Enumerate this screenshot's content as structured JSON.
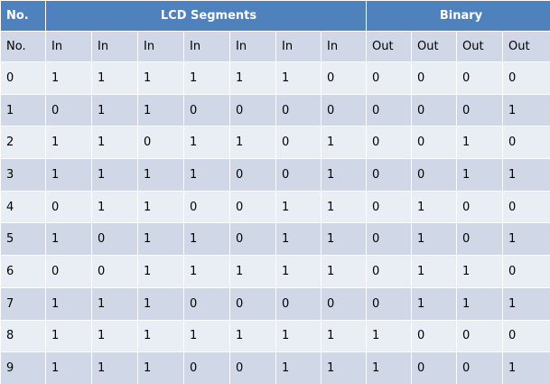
{
  "table": {
    "header": [
      "No.",
      "LCD Segments",
      "Binary"
    ],
    "subheader": [
      "No.",
      "In",
      "In",
      "In",
      "In",
      "In",
      "In",
      "In",
      "Out",
      "Out",
      "Out",
      "Out"
    ],
    "rows": [
      [
        0,
        1,
        1,
        1,
        1,
        1,
        1,
        0,
        0,
        0,
        0,
        0
      ],
      [
        1,
        0,
        1,
        1,
        0,
        0,
        0,
        0,
        0,
        0,
        0,
        1
      ],
      [
        2,
        1,
        1,
        0,
        1,
        1,
        0,
        1,
        0,
        0,
        1,
        0
      ],
      [
        3,
        1,
        1,
        1,
        1,
        0,
        0,
        1,
        0,
        0,
        1,
        1
      ],
      [
        4,
        0,
        1,
        1,
        0,
        0,
        1,
        1,
        0,
        1,
        0,
        0
      ],
      [
        5,
        1,
        0,
        1,
        1,
        0,
        1,
        1,
        0,
        1,
        0,
        1
      ],
      [
        6,
        0,
        0,
        1,
        1,
        1,
        1,
        1,
        0,
        1,
        1,
        0
      ],
      [
        7,
        1,
        1,
        1,
        0,
        0,
        0,
        0,
        0,
        1,
        1,
        1
      ],
      [
        8,
        1,
        1,
        1,
        1,
        1,
        1,
        1,
        1,
        0,
        0,
        0
      ],
      [
        9,
        1,
        1,
        1,
        0,
        0,
        1,
        1,
        1,
        0,
        0,
        1
      ]
    ]
  }
}
